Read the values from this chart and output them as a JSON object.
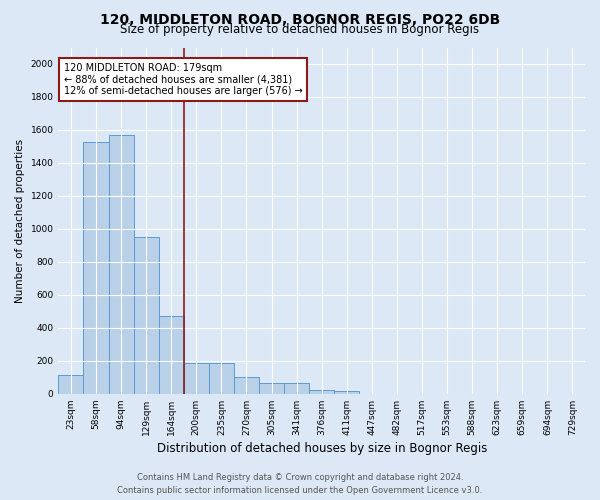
{
  "title": "120, MIDDLETON ROAD, BOGNOR REGIS, PO22 6DB",
  "subtitle": "Size of property relative to detached houses in Bognor Regis",
  "xlabel": "Distribution of detached houses by size in Bognor Regis",
  "ylabel": "Number of detached properties",
  "categories": [
    "23sqm",
    "58sqm",
    "94sqm",
    "129sqm",
    "164sqm",
    "200sqm",
    "235sqm",
    "270sqm",
    "305sqm",
    "341sqm",
    "376sqm",
    "411sqm",
    "447sqm",
    "482sqm",
    "517sqm",
    "553sqm",
    "588sqm",
    "623sqm",
    "659sqm",
    "694sqm",
    "729sqm"
  ],
  "values": [
    115,
    1530,
    1570,
    950,
    470,
    185,
    185,
    100,
    65,
    65,
    25,
    20,
    0,
    0,
    0,
    0,
    0,
    0,
    0,
    0,
    0
  ],
  "bar_color": "#b8d0e8",
  "bar_edge_color": "#5b9bd5",
  "vline_x": 4.5,
  "vline_color": "#8b1a1a",
  "annotation_text": "120 MIDDLETON ROAD: 179sqm\n← 88% of detached houses are smaller (4,381)\n12% of semi-detached houses are larger (576) →",
  "annotation_box_color": "#ffffff",
  "annotation_box_edge": "#8b1a1a",
  "ylim": [
    0,
    2100
  ],
  "yticks": [
    0,
    200,
    400,
    600,
    800,
    1000,
    1200,
    1400,
    1600,
    1800,
    2000
  ],
  "background_color": "#dce8f5",
  "footer_line1": "Contains HM Land Registry data © Crown copyright and database right 2024.",
  "footer_line2": "Contains public sector information licensed under the Open Government Licence v3.0.",
  "title_fontsize": 10,
  "subtitle_fontsize": 8.5,
  "xlabel_fontsize": 8.5,
  "ylabel_fontsize": 7.5,
  "tick_fontsize": 6.5,
  "annotation_fontsize": 7,
  "footer_fontsize": 6
}
